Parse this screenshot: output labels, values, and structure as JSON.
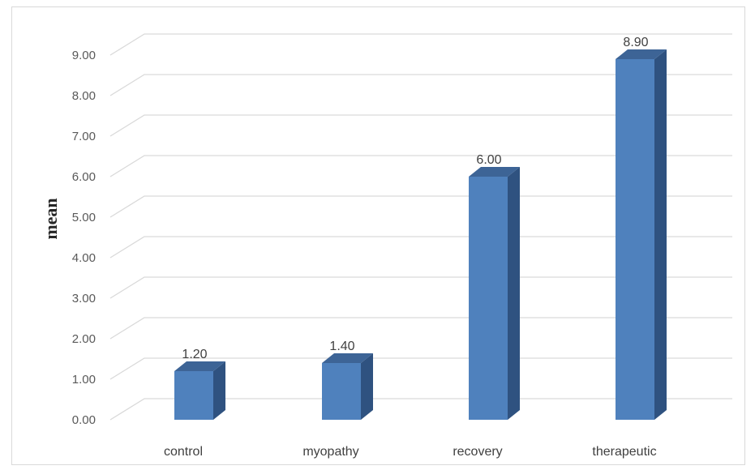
{
  "chart_data": {
    "type": "bar",
    "style": "3d-column",
    "categories": [
      "control",
      "myopathy",
      "recovery",
      "therapeutic"
    ],
    "values": [
      1.2,
      1.4,
      6.0,
      8.9
    ],
    "data_labels": [
      "1.20",
      "1.40",
      "6.00",
      "8.90"
    ],
    "title": "",
    "xlabel": "",
    "ylabel": "mean",
    "ylim": [
      0,
      9
    ],
    "yticks": [
      "0.00",
      "1.00",
      "2.00",
      "3.00",
      "4.00",
      "5.00",
      "6.00",
      "7.00",
      "8.00",
      "9.00"
    ],
    "grid": true,
    "legend": "none",
    "colors": {
      "bar_front": "#4f81bd",
      "bar_side": "#2f5280",
      "bar_top": "#3d6496",
      "grid": "#d9d9d9"
    }
  }
}
